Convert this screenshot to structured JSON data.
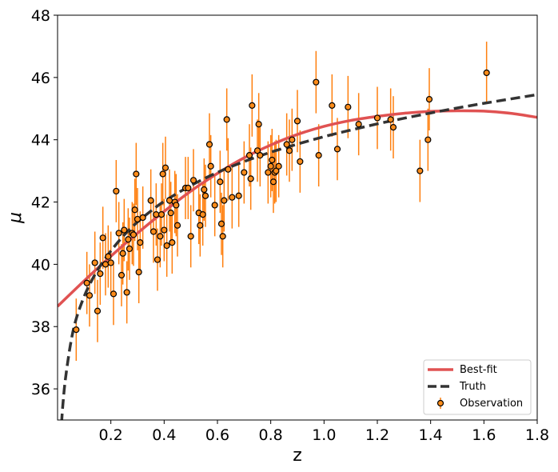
{
  "chart_data": {
    "type": "scatter",
    "xlabel": "z",
    "ylabel": "μ",
    "xlim": [
      0.0,
      1.8
    ],
    "ylim": [
      35,
      48
    ],
    "xticks": [
      0.2,
      0.4,
      0.6,
      0.8,
      1.0,
      1.2,
      1.4,
      1.6,
      1.8
    ],
    "xtick_labels": [
      "0.2",
      "0.4",
      "0.6",
      "0.8",
      "1.0",
      "1.2",
      "1.4",
      "1.6",
      "1.8"
    ],
    "yticks": [
      36,
      38,
      40,
      42,
      44,
      46,
      48
    ],
    "ytick_labels": [
      "36",
      "38",
      "40",
      "42",
      "44",
      "46",
      "48"
    ],
    "grid": false,
    "legend": {
      "position": "bottom-right",
      "entries": [
        {
          "label": "Best-fit",
          "style": "solid-line",
          "color": "#e05252"
        },
        {
          "label": "Truth",
          "style": "dashed-line",
          "color": "#333333"
        },
        {
          "label": "Observation",
          "style": "errorbar-marker",
          "color": "#ff8c1a"
        }
      ]
    },
    "colors": {
      "best_fit": "#e05252",
      "truth": "#333333",
      "marker_face": "#ff8c1a",
      "marker_edge": "#000000",
      "errorbar": "#ff7f0e"
    },
    "series": [
      {
        "name": "Best-fit",
        "kind": "line",
        "x": [
          0.0,
          0.1,
          0.2,
          0.3,
          0.4,
          0.5,
          0.6,
          0.7,
          0.8,
          0.9,
          1.0,
          1.1,
          1.2,
          1.3,
          1.4,
          1.5,
          1.6,
          1.7,
          1.8
        ],
        "y": [
          38.65,
          39.47,
          40.26,
          41.0,
          41.7,
          42.35,
          42.92,
          43.42,
          43.83,
          44.17,
          44.43,
          44.62,
          44.75,
          44.85,
          44.91,
          44.93,
          44.92,
          44.85,
          44.72
        ]
      },
      {
        "name": "Truth",
        "kind": "dashed-line",
        "x": [
          0.015,
          0.02,
          0.03,
          0.05,
          0.07,
          0.1,
          0.13,
          0.16,
          0.2,
          0.25,
          0.3,
          0.35,
          0.4,
          0.5,
          0.6,
          0.7,
          0.8,
          0.9,
          1.0,
          1.1,
          1.2,
          1.3,
          1.4,
          1.5,
          1.6,
          1.7,
          1.8
        ],
        "y": [
          34.9,
          35.5,
          36.35,
          37.5,
          38.25,
          38.97,
          39.51,
          39.95,
          40.43,
          40.94,
          41.36,
          41.71,
          42.02,
          42.53,
          42.95,
          43.3,
          43.6,
          43.86,
          44.1,
          44.31,
          44.51,
          44.69,
          44.86,
          45.02,
          45.17,
          45.31,
          45.45
        ]
      },
      {
        "name": "Observation",
        "kind": "errorbar",
        "x": [
          0.07,
          0.11,
          0.12,
          0.14,
          0.15,
          0.16,
          0.17,
          0.18,
          0.19,
          0.2,
          0.21,
          0.22,
          0.23,
          0.24,
          0.245,
          0.25,
          0.26,
          0.265,
          0.27,
          0.28,
          0.285,
          0.29,
          0.295,
          0.3,
          0.305,
          0.31,
          0.32,
          0.35,
          0.36,
          0.37,
          0.375,
          0.385,
          0.39,
          0.395,
          0.4,
          0.405,
          0.41,
          0.42,
          0.425,
          0.43,
          0.44,
          0.445,
          0.45,
          0.48,
          0.49,
          0.5,
          0.51,
          0.53,
          0.535,
          0.545,
          0.55,
          0.555,
          0.57,
          0.575,
          0.59,
          0.61,
          0.615,
          0.62,
          0.625,
          0.635,
          0.64,
          0.655,
          0.68,
          0.7,
          0.72,
          0.725,
          0.73,
          0.75,
          0.755,
          0.76,
          0.79,
          0.8,
          0.805,
          0.81,
          0.815,
          0.82,
          0.83,
          0.86,
          0.87,
          0.88,
          0.9,
          0.91,
          0.97,
          0.98,
          1.03,
          1.05,
          1.09,
          1.13,
          1.2,
          1.25,
          1.26,
          1.36,
          1.39,
          1.395,
          1.61
        ],
        "y": [
          37.9,
          39.4,
          39.0,
          40.05,
          38.5,
          39.7,
          40.85,
          40.0,
          40.25,
          40.05,
          39.05,
          42.35,
          41.0,
          39.65,
          40.35,
          41.1,
          39.1,
          40.8,
          40.5,
          41.0,
          40.95,
          41.75,
          42.9,
          41.45,
          39.75,
          40.7,
          41.5,
          42.05,
          41.05,
          41.6,
          40.15,
          40.9,
          41.6,
          42.9,
          41.1,
          43.1,
          40.6,
          42.05,
          41.65,
          40.7,
          42.0,
          41.9,
          41.25,
          42.45,
          42.45,
          40.9,
          42.7,
          41.65,
          41.25,
          41.6,
          42.4,
          42.2,
          43.85,
          43.15,
          41.9,
          42.65,
          41.3,
          40.9,
          42.05,
          44.65,
          43.05,
          42.15,
          42.2,
          42.95,
          43.5,
          42.75,
          45.1,
          43.65,
          44.5,
          43.5,
          42.95,
          43.15,
          43.35,
          42.65,
          42.95,
          43.0,
          43.15,
          43.85,
          43.65,
          44.0,
          44.6,
          43.3,
          45.85,
          43.5,
          45.1,
          43.7,
          45.05,
          44.5,
          44.7,
          44.65,
          44.4,
          43.0,
          44.0,
          45.3,
          46.15
        ],
        "yerr": 1.0
      }
    ]
  }
}
